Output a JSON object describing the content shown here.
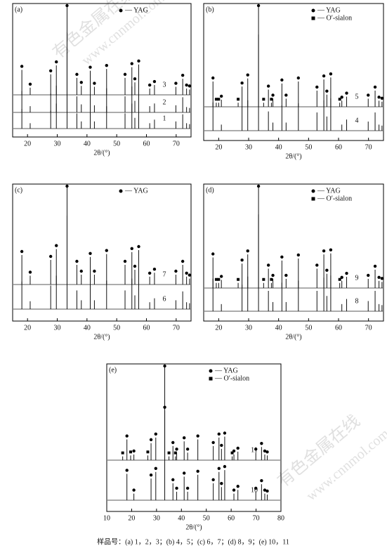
{
  "chart_data": [
    {
      "type": "line",
      "panel_label": "(a)",
      "xlabel": "2θ/(°)",
      "xlim": [
        15,
        75
      ],
      "xticks": [
        20,
        30,
        40,
        50,
        60,
        70
      ],
      "legend": [
        {
          "marker": "circle",
          "label": "— YAG"
        }
      ],
      "x": [
        18.1,
        20.9,
        27.8,
        29.7,
        33.3,
        36.6,
        38.1,
        41.1,
        42.5,
        46.6,
        52.8,
        55.1,
        56.1,
        57.4,
        61.1,
        62.7,
        69.9,
        72.2,
        73.5,
        74.5
      ],
      "peak_marker": [
        "circle",
        "circle",
        "circle",
        "circle",
        "circle",
        "circle",
        "circle",
        "circle",
        "circle",
        "circle",
        "circle",
        "circle",
        "circle",
        "circle",
        "circle",
        "circle",
        "circle",
        "circle",
        "circle",
        "circle"
      ],
      "series": [
        {
          "name": "3",
          "marked": true,
          "values": [
            28,
            8,
            23,
            33,
            100,
            19,
            10,
            27,
            9,
            29,
            19,
            31,
            14,
            34,
            7,
            11,
            9,
            18,
            7,
            6
          ]
        },
        {
          "name": "2",
          "marked": false,
          "values": [
            24,
            7,
            21,
            30,
            90,
            18,
            9,
            25,
            8,
            27,
            18,
            29,
            13,
            32,
            7,
            10,
            8,
            17,
            6,
            5
          ]
        },
        {
          "name": "1",
          "marked": false,
          "values": [
            22,
            6,
            20,
            28,
            85,
            17,
            8,
            23,
            8,
            25,
            17,
            28,
            12,
            30,
            6,
            10,
            8,
            16,
            6,
            5
          ]
        }
      ]
    },
    {
      "type": "line",
      "panel_label": "(b)",
      "xlabel": "2θ/(°)",
      "xlim": [
        15,
        75
      ],
      "xticks": [
        20,
        30,
        40,
        50,
        60,
        70
      ],
      "legend": [
        {
          "marker": "circle",
          "label": "— YAG"
        },
        {
          "marker": "square",
          "label": "— O′-sialon"
        }
      ],
      "x": [
        18.1,
        20.9,
        27.8,
        29.7,
        33.3,
        36.6,
        38.1,
        41.1,
        42.5,
        46.6,
        52.8,
        55.1,
        56.1,
        57.4,
        61.1,
        62.7,
        69.9,
        72.2,
        73.5,
        74.5,
        19.2,
        20.0,
        26.5,
        35.0,
        37.6,
        60.4
      ],
      "peak_marker": [
        "circle",
        "circle",
        "circle",
        "circle",
        "circle",
        "circle",
        "circle",
        "circle",
        "circle",
        "circle",
        "circle",
        "circle",
        "circle",
        "circle",
        "circle",
        "circle",
        "circle",
        "circle",
        "circle",
        "circle",
        "square",
        "square",
        "square",
        "square",
        "square",
        "square"
      ],
      "series": [
        {
          "name": "5",
          "marked": true,
          "values": [
            25,
            7,
            20,
            28,
            100,
            17,
            8,
            23,
            8,
            25,
            16,
            27,
            12,
            29,
            6,
            10,
            8,
            16,
            6,
            5,
            4,
            4,
            4,
            4,
            4,
            4
          ]
        },
        {
          "name": "4",
          "marked": false,
          "values": [
            28,
            6,
            24,
            30,
            95,
            19,
            8,
            25,
            8,
            27,
            18,
            30,
            14,
            32,
            6,
            11,
            9,
            18,
            6,
            5,
            null,
            null,
            null,
            null,
            null,
            null
          ]
        }
      ]
    },
    {
      "type": "line",
      "panel_label": "(c)",
      "xlabel": "2θ/(°)",
      "xlim": [
        15,
        75
      ],
      "xticks": [
        20,
        30,
        40,
        50,
        60,
        70
      ],
      "legend": [
        {
          "marker": "circle",
          "label": "— YAG"
        }
      ],
      "x": [
        18.1,
        20.9,
        27.8,
        29.7,
        33.3,
        36.6,
        38.1,
        41.1,
        42.5,
        46.6,
        52.8,
        55.1,
        56.1,
        57.4,
        61.1,
        62.7,
        69.9,
        72.2,
        73.5,
        74.5
      ],
      "peak_marker": [
        "circle",
        "circle",
        "circle",
        "circle",
        "circle",
        "circle",
        "circle",
        "circle",
        "circle",
        "circle",
        "circle",
        "circle",
        "circle",
        "circle",
        "circle",
        "circle",
        "circle",
        "circle",
        "circle",
        "circle"
      ],
      "series": [
        {
          "name": "7",
          "marked": true,
          "values": [
            30,
            9,
            25,
            36,
            100,
            20,
            10,
            28,
            10,
            31,
            20,
            33,
            15,
            35,
            8,
            12,
            10,
            20,
            8,
            6
          ]
        },
        {
          "name": "6",
          "marked": false,
          "values": [
            28,
            8,
            24,
            34,
            95,
            19,
            9,
            26,
            9,
            29,
            19,
            31,
            14,
            33,
            7,
            11,
            9,
            18,
            7,
            6
          ]
        }
      ]
    },
    {
      "type": "line",
      "panel_label": "(d)",
      "xlabel": "2θ/(°)",
      "xlim": [
        15,
        75
      ],
      "xticks": [
        20,
        30,
        40,
        50,
        60,
        70
      ],
      "legend": [
        {
          "marker": "circle",
          "label": "— YAG"
        },
        {
          "marker": "square",
          "label": "— O′-sialon"
        }
      ],
      "x": [
        18.1,
        20.9,
        27.8,
        29.7,
        33.3,
        36.6,
        38.1,
        41.1,
        42.5,
        46.6,
        52.8,
        55.1,
        56.1,
        57.4,
        61.1,
        62.7,
        69.9,
        72.2,
        73.5,
        74.5,
        19.2,
        20.0,
        26.5,
        35.0,
        37.6,
        60.4
      ],
      "peak_marker": [
        "circle",
        "circle",
        "circle",
        "circle",
        "circle",
        "circle",
        "circle",
        "circle",
        "circle",
        "circle",
        "circle",
        "circle",
        "circle",
        "circle",
        "circle",
        "circle",
        "circle",
        "circle",
        "circle",
        "circle",
        "square",
        "square",
        "square",
        "square",
        "square",
        "square"
      ],
      "series": [
        {
          "name": "9",
          "marked": true,
          "values": [
            30,
            8,
            24,
            33,
            100,
            19,
            9,
            27,
            9,
            29,
            19,
            33,
            14,
            34,
            7,
            11,
            9,
            18,
            7,
            6,
            5,
            5,
            5,
            5,
            5,
            5
          ]
        },
        {
          "name": "8",
          "marked": false,
          "values": [
            32,
            7,
            26,
            34,
            95,
            20,
            9,
            28,
            9,
            30,
            20,
            33,
            15,
            35,
            7,
            12,
            10,
            20,
            7,
            6,
            null,
            null,
            null,
            null,
            null,
            null
          ]
        }
      ]
    },
    {
      "type": "line",
      "panel_label": "(e)",
      "xlabel": "2θ/(°)",
      "xlim": [
        10,
        80
      ],
      "xticks": [
        10,
        20,
        30,
        40,
        50,
        60,
        70,
        80
      ],
      "legend": [
        {
          "marker": "circle",
          "label": "— YAG"
        },
        {
          "marker": "square",
          "label": "— O′-sialon"
        }
      ],
      "x": [
        18.1,
        20.9,
        27.8,
        29.7,
        33.3,
        36.6,
        38.1,
        41.1,
        42.5,
        46.6,
        52.8,
        55.1,
        56.1,
        57.4,
        61.1,
        62.7,
        69.9,
        72.2,
        73.5,
        74.5,
        16.4,
        19.6,
        26.5,
        35.0,
        37.6,
        60.4
      ],
      "peak_marker": [
        "circle",
        "circle",
        "circle",
        "circle",
        "circle",
        "circle",
        "circle",
        "circle",
        "circle",
        "circle",
        "circle",
        "circle",
        "circle",
        "circle",
        "circle",
        "circle",
        "circle",
        "circle",
        "circle",
        "circle",
        "square",
        "square",
        "square",
        "square",
        "square",
        "square"
      ],
      "series": [
        {
          "name": "11",
          "marked": true,
          "values": [
            22,
            6,
            18,
            24,
            100,
            15,
            8,
            20,
            8,
            22,
            15,
            24,
            12,
            25,
            6,
            9,
            8,
            14,
            6,
            5,
            4,
            5,
            5,
            4,
            4,
            4
          ]
        },
        {
          "name": "10",
          "marked": true,
          "values": [
            28,
            7,
            23,
            30,
            95,
            18,
            9,
            25,
            9,
            27,
            18,
            30,
            14,
            32,
            7,
            11,
            9,
            17,
            7,
            6,
            null,
            null,
            null,
            null,
            null,
            null
          ]
        }
      ]
    }
  ],
  "caption": "样品号：(a) 1，2，3；(b) 4，5；(c) 6，7；(d) 8，9；(e) 10，11",
  "watermarks": [
    "有色金属在线",
    "www.cnnmol.com"
  ]
}
